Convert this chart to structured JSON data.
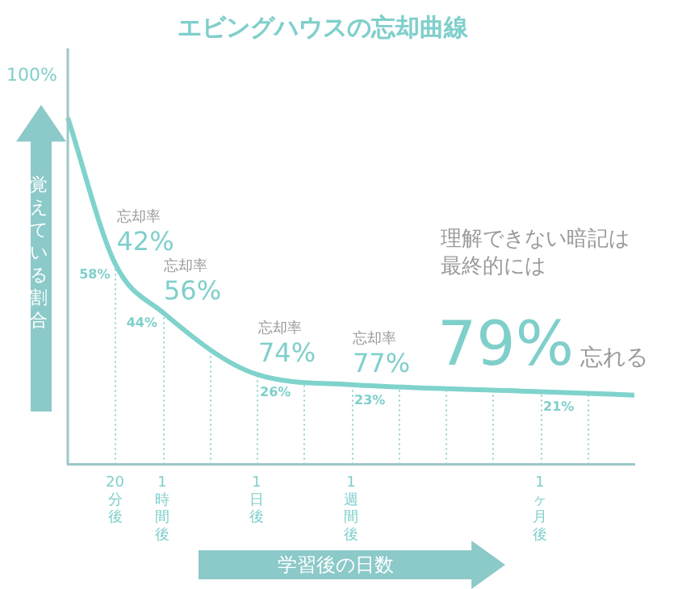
{
  "chart_data": {
    "type": "line",
    "title": "エビングハウスの忘却曲線",
    "xlabel": "学習後の日数",
    "ylabel": "覚えている割合",
    "categories": [
      null,
      "20分後",
      "1時間後",
      null,
      "1日後",
      null,
      "1週間後",
      null,
      null,
      null,
      "1ヶ月後",
      null,
      null
    ],
    "series": [
      {
        "color": "#7fd3cc",
        "values": [
          100,
          58,
          44,
          null,
          26,
          null,
          23,
          null,
          null,
          null,
          21,
          null,
          20
        ],
        "value_labels": [
          null,
          "58%",
          "44%",
          null,
          "26%",
          null,
          "23%",
          null,
          null,
          null,
          "21%",
          null,
          null
        ]
      }
    ],
    "grid": "x",
    "legend": false,
    "marker": "none",
    "line_style": "solid",
    "annotations": [
      {
        "text": "忘却率\n42%",
        "x": "20分後",
        "y": 58
      },
      {
        "text": "忘却率\n56%",
        "x": "1時間後",
        "y": 44
      },
      {
        "text": "忘却率\n74%",
        "x": "1日後",
        "y": 26
      },
      {
        "text": "忘却率\n77%",
        "x": "1週間後",
        "y": 23
      },
      "100%",
      "理解できない暗記は",
      "最終的には",
      "79%",
      "忘れる"
    ]
  }
}
